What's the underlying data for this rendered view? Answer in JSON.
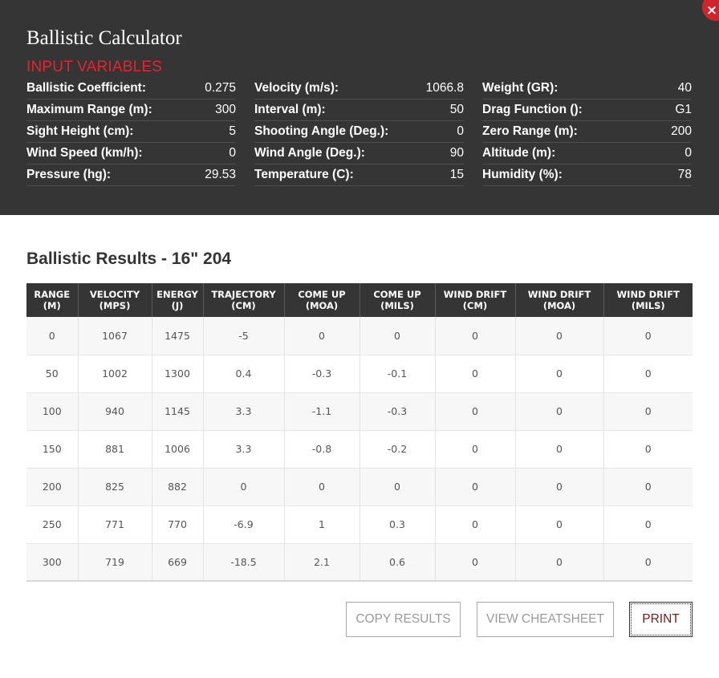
{
  "header": {
    "title": "Ballistic Calculator",
    "close_icon": "×",
    "section_label": "INPUT VARIABLES"
  },
  "input_variables": {
    "col1": [
      {
        "label": "Ballistic Coefficient:",
        "value": "0.275"
      },
      {
        "label": "Maximum Range (m):",
        "value": "300"
      },
      {
        "label": "Sight Height (cm):",
        "value": "5"
      },
      {
        "label": "Wind Speed (km/h):",
        "value": "0"
      },
      {
        "label": "Pressure (hg):",
        "value": "29.53"
      }
    ],
    "col2": [
      {
        "label": "Velocity (m/s):",
        "value": "1066.8"
      },
      {
        "label": "Interval (m):",
        "value": "50"
      },
      {
        "label": "Shooting Angle (Deg.):",
        "value": "0"
      },
      {
        "label": "Wind Angle (Deg.):",
        "value": "90"
      },
      {
        "label": "Temperature (C):",
        "value": "15"
      }
    ],
    "col3": [
      {
        "label": "Weight (GR):",
        "value": "40"
      },
      {
        "label": "Drag Function ():",
        "value": "G1"
      },
      {
        "label": "Zero Range (m):",
        "value": "200"
      },
      {
        "label": "Altitude (m):",
        "value": "0"
      },
      {
        "label": "Humidity (%):",
        "value": "78"
      }
    ]
  },
  "results": {
    "title": "Ballistic Results - 16\" 204",
    "columns": [
      {
        "line1": "RANGE",
        "line2": "(M)"
      },
      {
        "line1": "VELOCITY",
        "line2": "(MPS)"
      },
      {
        "line1": "ENERGY",
        "line2": "(J)"
      },
      {
        "line1": "TRAJECTORY",
        "line2": "(CM)"
      },
      {
        "line1": "COME UP",
        "line2": "(MOA)"
      },
      {
        "line1": "COME UP",
        "line2": "(MILS)"
      },
      {
        "line1": "WIND DRIFT",
        "line2": "(CM)"
      },
      {
        "line1": "WIND DRIFT",
        "line2": "(MOA)"
      },
      {
        "line1": "WIND DRIFT",
        "line2": "(MILS)"
      }
    ],
    "rows": [
      [
        "0",
        "1067",
        "1475",
        "-5",
        "0",
        "0",
        "0",
        "0",
        "0"
      ],
      [
        "50",
        "1002",
        "1300",
        "0.4",
        "-0.3",
        "-0.1",
        "0",
        "0",
        "0"
      ],
      [
        "100",
        "940",
        "1145",
        "3.3",
        "-1.1",
        "-0.3",
        "0",
        "0",
        "0"
      ],
      [
        "150",
        "881",
        "1006",
        "3.3",
        "-0.8",
        "-0.2",
        "0",
        "0",
        "0"
      ],
      [
        "200",
        "825",
        "882",
        "0",
        "0",
        "0",
        "0",
        "0",
        "0"
      ],
      [
        "250",
        "771",
        "770",
        "-6.9",
        "1",
        "0.3",
        "0",
        "0",
        "0"
      ],
      [
        "300",
        "719",
        "669",
        "-18.5",
        "2.1",
        "0.6",
        "0",
        "0",
        "0"
      ]
    ]
  },
  "actions": {
    "copy_label": "COPY RESULTS",
    "cheatsheet_label": "VIEW CHEATSHEET",
    "print_label": "PRINT"
  },
  "colors": {
    "panel_bg": "#353535",
    "accent_red": "#e0262f",
    "header_bg": "#353535"
  }
}
